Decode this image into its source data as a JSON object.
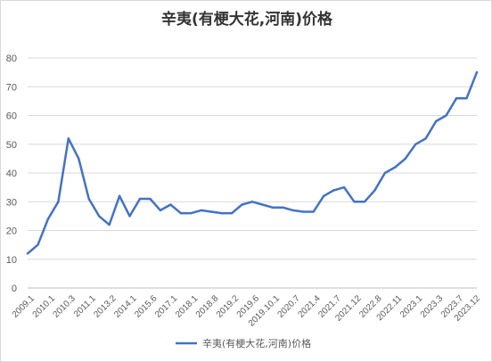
{
  "chart_data": {
    "type": "line",
    "title": "辛夷(有梗大花,河南)价格",
    "xlabel": "",
    "ylabel": "",
    "ylim": [
      0,
      80
    ],
    "yticks": [
      0,
      10,
      20,
      30,
      40,
      50,
      60,
      70,
      80
    ],
    "grid": "horizontal",
    "legend_position": "bottom",
    "colors": {
      "series": "#4472c4",
      "grid": "#d9d9d9",
      "axis": "#bfbfbf"
    },
    "x_tick_labels": [
      "2009.1",
      "2010.1",
      "2010.3",
      "2011.1",
      "2013.2",
      "2014.1",
      "2015.6",
      "2017.1",
      "2018.1",
      "2018.8",
      "2019.2",
      "2019.6",
      "2019.10.1",
      "2020.7",
      "2021.4",
      "2021.7",
      "2021.12",
      "2022.8",
      "2022.11",
      "2023.1",
      "2023.3",
      "2023.7",
      "2023.12"
    ],
    "series": [
      {
        "name": "辛夷(有梗大花,河南)价格",
        "values": [
          12,
          15,
          24,
          30,
          52,
          45,
          31,
          25,
          22,
          32,
          25,
          31,
          31,
          27,
          29,
          26,
          26,
          27,
          26.5,
          26,
          26,
          29,
          30,
          29,
          28,
          28,
          27,
          26.5,
          26.5,
          32,
          34,
          35,
          30,
          30,
          34,
          40,
          42,
          45,
          50,
          52,
          58,
          60,
          66,
          66,
          75
        ]
      }
    ]
  }
}
